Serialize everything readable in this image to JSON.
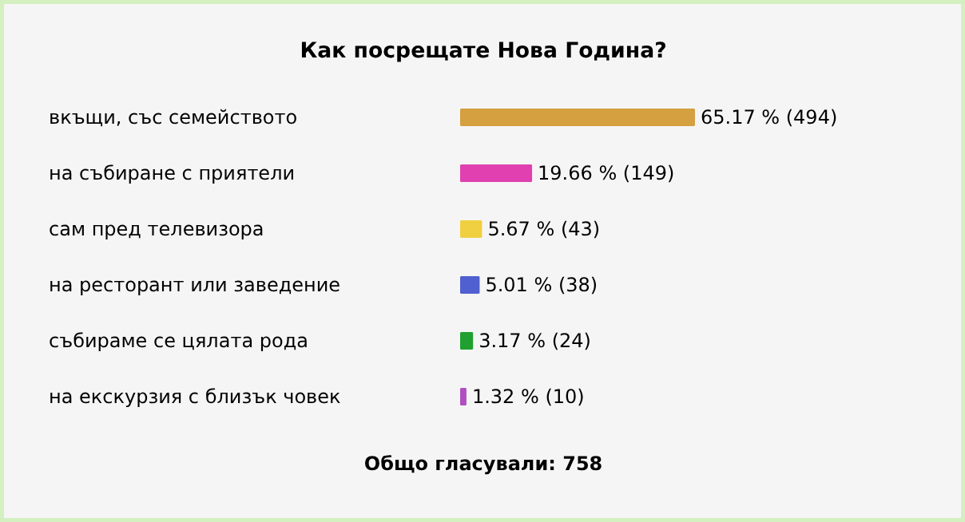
{
  "chart_data": {
    "type": "bar",
    "orientation": "horizontal",
    "title": "Как посрещате Нова Година?",
    "categories": [
      "вкъщи, със семейството",
      "на събиране с приятели",
      "сам пред телевизора",
      "на ресторант или заведение",
      "събираме се цялата рода",
      "на екскурзия с близък човек"
    ],
    "values": [
      65.17,
      19.66,
      5.67,
      5.01,
      3.17,
      1.32
    ],
    "value_labels": [
      "65.17 % (494)",
      "19.66 % (149)",
      "5.67 % (43)",
      "5.01 % (38)",
      "3.17 % (24)",
      "1.32 % (10)"
    ],
    "colors": [
      "#d4a040",
      "#e040b0",
      "#f0d040",
      "#5060d0",
      "#20a030",
      "#b050c0"
    ],
    "annotations": [
      "Общо гласували: 758"
    ]
  }
}
